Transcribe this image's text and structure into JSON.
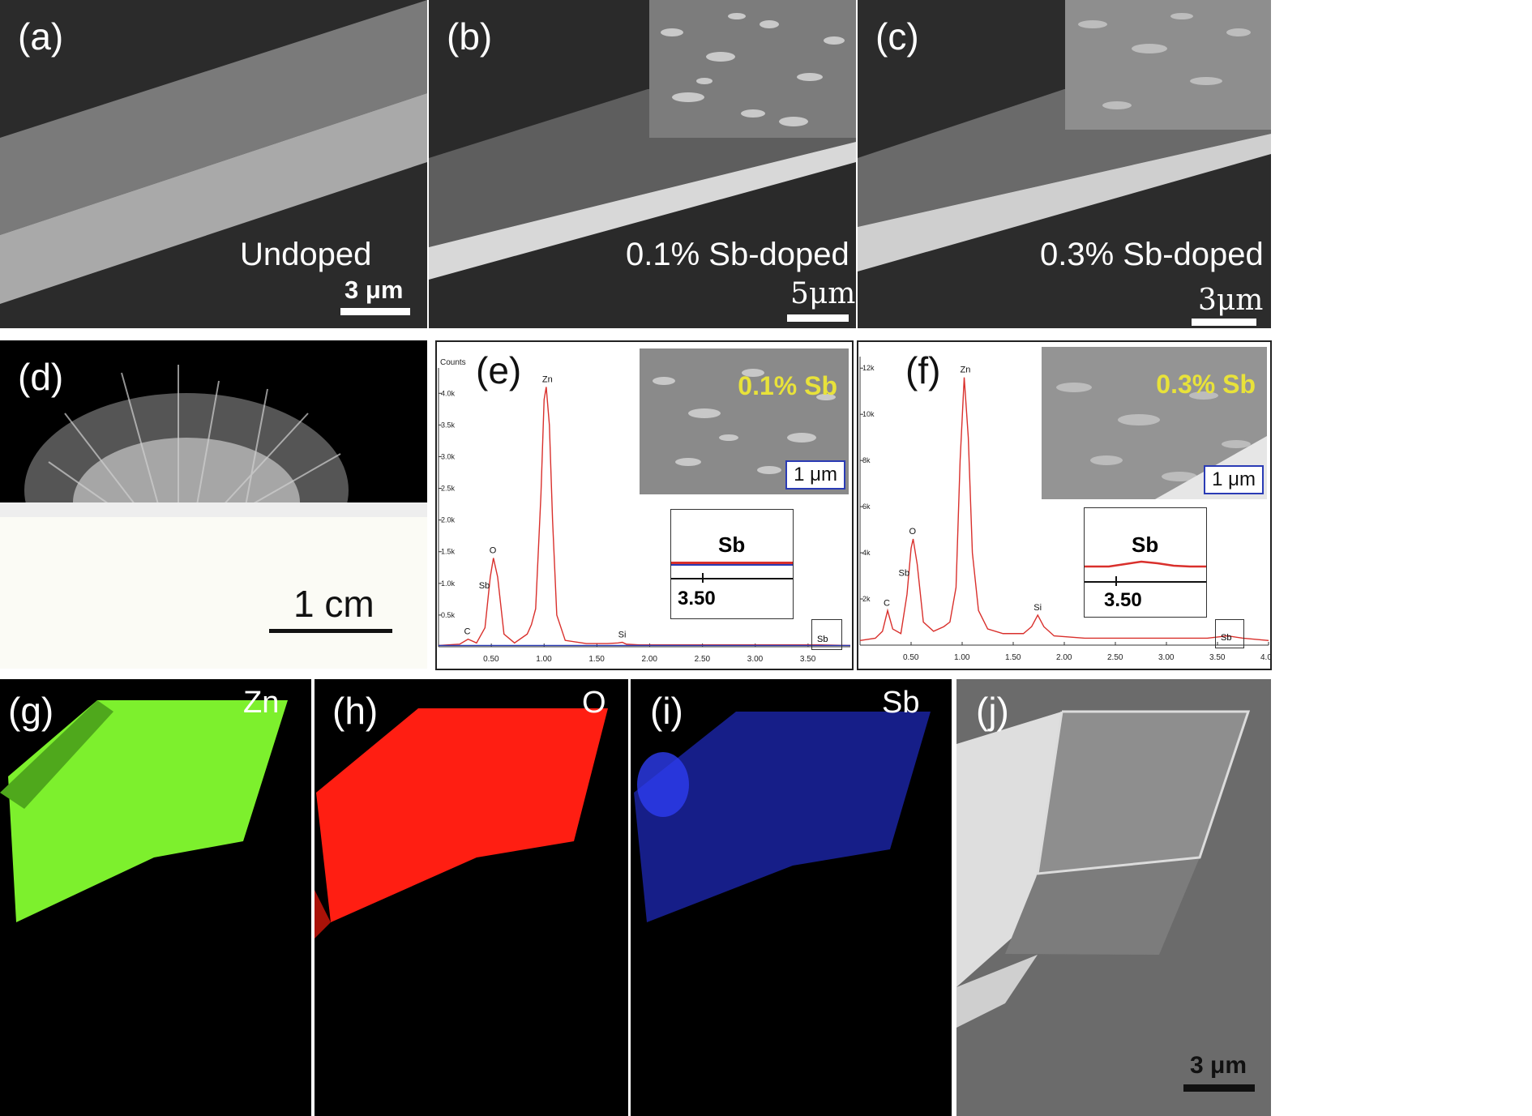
{
  "panels": {
    "a": {
      "label": "(a)",
      "caption": "Undoped",
      "scale": "3 μm"
    },
    "b": {
      "label": "(b)",
      "caption": "0.1% Sb-doped",
      "scale": "5μm"
    },
    "c": {
      "label": "(c)",
      "caption": "0.3% Sb-doped",
      "scale": "3μm"
    },
    "d": {
      "label": "(d)",
      "scale": "1 cm"
    },
    "e": {
      "label": "(e)",
      "inset_tag": "0.1% Sb",
      "inset_scale": "1 μm",
      "zoom_peak": "Sb",
      "zoom_tick": "3.50",
      "box_label": "Sb"
    },
    "f": {
      "label": "(f)",
      "inset_tag": "0.3% Sb",
      "inset_scale": "1 μm",
      "zoom_peak": "Sb",
      "zoom_tick": "3.50",
      "box_label": "Sb"
    },
    "g": {
      "label": "(g)",
      "element": "Zn"
    },
    "h": {
      "label": "(h)",
      "element": "O"
    },
    "i": {
      "label": "(i)",
      "element": "Sb"
    },
    "j": {
      "label": "(j)",
      "scale": "3 μm"
    }
  },
  "chart_data": [
    {
      "type": "line",
      "panel": "e",
      "ylabel": "Counts",
      "x_ticks": [
        "0.50",
        "1.00",
        "1.50",
        "2.00",
        "2.50",
        "3.00",
        "3.50"
      ],
      "y_ticks": [
        "0.5k",
        "1.0k",
        "1.5k",
        "2.0k",
        "2.5k",
        "3.0k",
        "3.5k",
        "4.0k"
      ],
      "xlim": [
        0,
        3.9
      ],
      "ylim": [
        0,
        4.4
      ],
      "peaks": [
        {
          "label": "C",
          "x": 0.28,
          "y": 0.12
        },
        {
          "label": "O",
          "x": 0.52,
          "y": 1.4
        },
        {
          "label": "Sb",
          "x": 0.52,
          "y": 1.1
        },
        {
          "label": "Zn",
          "x": 1.02,
          "y": 4.1
        },
        {
          "label": "Si",
          "x": 1.74,
          "y": 0.07
        }
      ],
      "series": [
        {
          "color": "#d9302c",
          "x": [
            0.0,
            0.2,
            0.28,
            0.36,
            0.44,
            0.49,
            0.52,
            0.56,
            0.62,
            0.72,
            0.84,
            0.88,
            0.92,
            0.97,
            1.0,
            1.02,
            1.05,
            1.08,
            1.12,
            1.2,
            1.4,
            1.6,
            1.7,
            1.74,
            1.78,
            1.9,
            2.2,
            2.6,
            3.0,
            3.4,
            3.6,
            3.9
          ],
          "y": [
            0.02,
            0.04,
            0.12,
            0.06,
            0.3,
            1.1,
            1.4,
            1.1,
            0.2,
            0.06,
            0.2,
            0.35,
            0.6,
            2.4,
            3.9,
            4.1,
            3.5,
            2.0,
            0.5,
            0.1,
            0.05,
            0.05,
            0.06,
            0.07,
            0.04,
            0.03,
            0.03,
            0.03,
            0.03,
            0.03,
            0.03,
            0.02
          ]
        },
        {
          "color": "#2a3bb5",
          "x": [
            0.0,
            0.5,
            1.0,
            1.5,
            2.0,
            2.5,
            3.0,
            3.5,
            3.9
          ],
          "y": [
            0.02,
            0.02,
            0.02,
            0.02,
            0.02,
            0.02,
            0.02,
            0.02,
            0.02
          ]
        }
      ]
    },
    {
      "type": "line",
      "panel": "f",
      "x_ticks": [
        "0.50",
        "1.00",
        "1.50",
        "2.00",
        "2.50",
        "3.00",
        "3.50",
        "4.0"
      ],
      "y_ticks": [
        "2k",
        "4k",
        "6k",
        "8k",
        "10k",
        "12k"
      ],
      "xlim": [
        0,
        4.0
      ],
      "ylim": [
        0,
        12.5
      ],
      "peaks": [
        {
          "label": "C",
          "x": 0.27,
          "y": 1.5
        },
        {
          "label": "O",
          "x": 0.52,
          "y": 4.6
        },
        {
          "label": "Sb",
          "x": 0.52,
          "y": 3.5
        },
        {
          "label": "Zn",
          "x": 1.02,
          "y": 11.6
        },
        {
          "label": "Si",
          "x": 1.74,
          "y": 1.3
        }
      ],
      "series": [
        {
          "color": "#d9302c",
          "x": [
            0.0,
            0.15,
            0.22,
            0.27,
            0.32,
            0.4,
            0.46,
            0.5,
            0.52,
            0.56,
            0.62,
            0.72,
            0.82,
            0.88,
            0.94,
            0.98,
            1.02,
            1.06,
            1.1,
            1.16,
            1.25,
            1.4,
            1.6,
            1.68,
            1.74,
            1.8,
            1.9,
            2.2,
            2.6,
            3.0,
            3.4,
            3.6,
            3.75,
            4.0
          ],
          "y": [
            0.2,
            0.3,
            0.6,
            1.5,
            0.7,
            0.5,
            2.2,
            4.2,
            4.6,
            3.5,
            1.0,
            0.6,
            0.8,
            1.0,
            2.5,
            8.0,
            11.6,
            9.0,
            4.0,
            1.5,
            0.7,
            0.5,
            0.5,
            0.8,
            1.3,
            0.8,
            0.4,
            0.3,
            0.3,
            0.3,
            0.3,
            0.4,
            0.3,
            0.2
          ]
        }
      ]
    }
  ]
}
